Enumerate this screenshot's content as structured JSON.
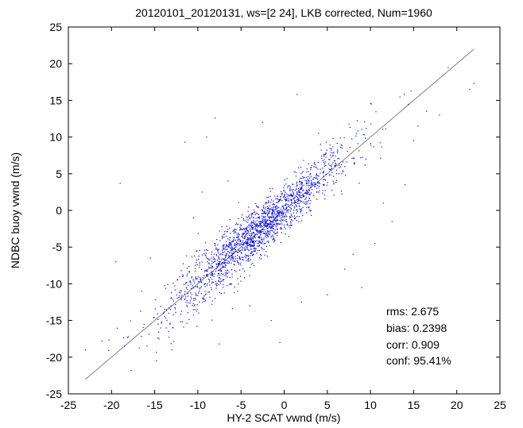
{
  "chart_data": {
    "type": "scatter",
    "title": "20120101_20120131, ws=[2 24], LKB corrected, Num=1960",
    "xlabel": "HY-2 SCAT vwnd (m/s)",
    "ylabel": "NDBC buoy vwnd (m/s)",
    "xlim": [
      -25,
      25
    ],
    "ylim": [
      -25,
      25
    ],
    "xticks": [
      "-25",
      "-20",
      "-15",
      "-10",
      "-5",
      "0",
      "5",
      "10",
      "15",
      "20",
      "25"
    ],
    "yticks": [
      "-25",
      "-20",
      "-15",
      "-10",
      "-5",
      "0",
      "5",
      "10",
      "15",
      "20",
      "25"
    ],
    "grid": false,
    "num_points": 1960,
    "point_color": "#0000ff",
    "reference_line": {
      "from": [
        -23,
        -23
      ],
      "to": [
        22,
        22
      ],
      "color": "#808080"
    },
    "stats": [
      "rms:  2.675",
      "bias: 0.2398",
      "corr: 0.909",
      "conf: 95.41%"
    ],
    "outliers": [
      [
        -23,
        -19
      ],
      [
        -19.5,
        -7
      ],
      [
        -19,
        3.7
      ],
      [
        -18.5,
        -18.5
      ],
      [
        -16.5,
        -11
      ],
      [
        -15.5,
        -6.5
      ],
      [
        -14.5,
        -17.5
      ],
      [
        -13,
        -19
      ],
      [
        -12,
        -15.2
      ],
      [
        -11.5,
        9.3
      ],
      [
        -10.5,
        -1
      ],
      [
        -10,
        -10.5
      ],
      [
        -9.5,
        2.5
      ],
      [
        -9,
        10
      ],
      [
        -8,
        12.6
      ],
      [
        -7.5,
        -18.2
      ],
      [
        -6.5,
        4
      ],
      [
        -4,
        -13
      ],
      [
        -3.5,
        -7.5
      ],
      [
        -2.5,
        12
      ],
      [
        -1.5,
        -15
      ],
      [
        -0.5,
        -18
      ],
      [
        1.5,
        15.8
      ],
      [
        2,
        -12.5
      ],
      [
        4,
        10.5
      ],
      [
        5,
        -11.5
      ],
      [
        7,
        -8
      ],
      [
        8,
        -6
      ],
      [
        9,
        -10.5
      ],
      [
        10.5,
        -4.5
      ],
      [
        11.5,
        1
      ],
      [
        12.5,
        -1.5
      ],
      [
        14,
        3.5
      ],
      [
        15,
        9.5
      ],
      [
        15.5,
        11.5
      ],
      [
        16.5,
        13.5
      ],
      [
        18,
        13
      ],
      [
        19,
        19.5
      ],
      [
        21.5,
        16.5
      ],
      [
        22,
        17.3
      ]
    ]
  }
}
